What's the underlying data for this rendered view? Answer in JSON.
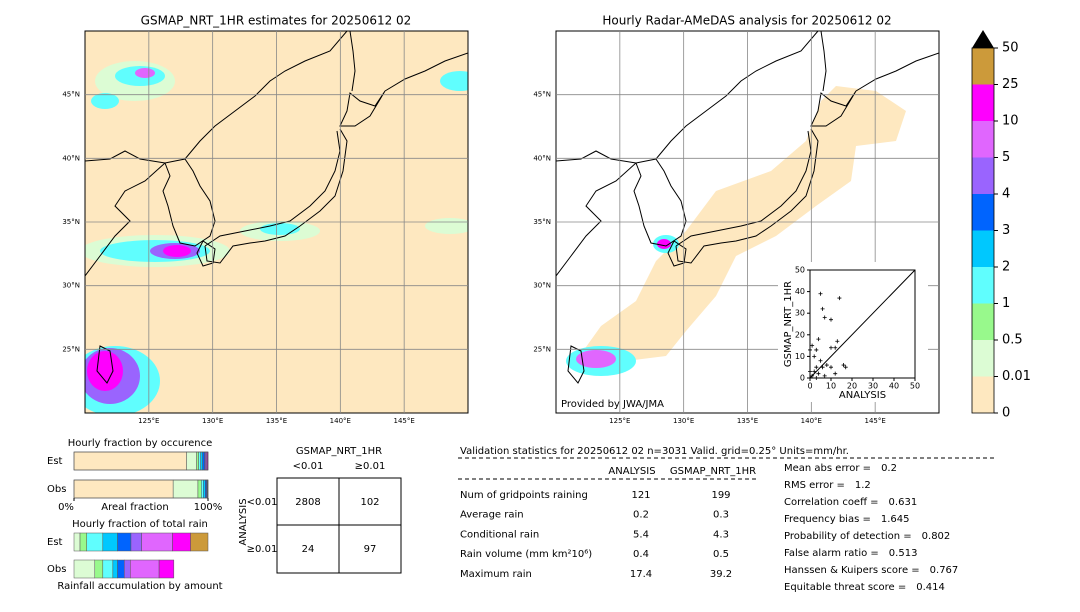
{
  "maps": [
    {
      "title": "GSMAP_NRT_1HR estimates for 20250612 02"
    },
    {
      "title": "Hourly Radar-AMeDAS analysis for 20250612 02",
      "credit": "Provided by JWA/JMA"
    }
  ],
  "map_axes": {
    "xlim": [
      120,
      150
    ],
    "ylim": [
      20,
      50
    ],
    "xticks": [
      {
        "value": 125,
        "label": "125°E"
      },
      {
        "value": 130,
        "label": "130°E"
      },
      {
        "value": 135,
        "label": "135°E"
      },
      {
        "value": 140,
        "label": "140°E"
      },
      {
        "value": 145,
        "label": "145°E"
      }
    ],
    "yticks": [
      {
        "value": 25,
        "label": "25°N"
      },
      {
        "value": 30,
        "label": "30°N"
      },
      {
        "value": 35,
        "label": "35°N"
      },
      {
        "value": 40,
        "label": "40°N"
      },
      {
        "value": 45,
        "label": "45°N"
      }
    ]
  },
  "colorbar": {
    "ticks": [
      0,
      0.01,
      0.5,
      1,
      2,
      3,
      4,
      5,
      10,
      25,
      50
    ],
    "colors": [
      "#fee8c0",
      "#dcfcd4",
      "#98f98c",
      "#60fefe",
      "#00c8fe",
      "#0064fe",
      "#9a64fe",
      "#e066fe",
      "#fe00fe",
      "#cc9a3a"
    ],
    "extend_color": "#000000"
  },
  "chart_data": [
    {
      "type": "scatter",
      "x_label": "ANALYSIS",
      "y_label": "GSMAP_NRT_1HR",
      "xlim": [
        0,
        50
      ],
      "ylim": [
        0,
        50
      ],
      "xticks": [
        0,
        10,
        20,
        30,
        40,
        50
      ],
      "yticks": [
        0,
        10,
        20,
        30,
        40,
        50
      ],
      "color": "#000000",
      "x": [
        5,
        6,
        7,
        10,
        14,
        13,
        10,
        12,
        4,
        3,
        1,
        2,
        0,
        5,
        8,
        17,
        16,
        10,
        6,
        3,
        2,
        4,
        1,
        0,
        3,
        7,
        12
      ],
      "y": [
        39,
        32,
        28,
        27,
        37,
        17,
        14,
        14,
        18,
        13,
        15,
        10,
        13,
        8,
        6,
        5,
        6,
        5,
        5,
        5,
        3,
        2,
        1,
        3,
        0,
        1,
        2
      ]
    },
    {
      "type": "stacked-bar",
      "title": "Hourly fraction by occurence",
      "x_label": "Areal fraction",
      "categories": [
        "Est",
        "Obs"
      ],
      "xlim": [
        0,
        100
      ],
      "xticks": [
        {
          "value": 0,
          "label": "0%"
        },
        {
          "value": 100,
          "label": "100%"
        }
      ],
      "series": [
        {
          "color": "#fee8c0",
          "values": [
            84,
            74
          ]
        },
        {
          "color": "#dcfcd4",
          "values": [
            7.5,
            18.5
          ]
        },
        {
          "color": "#98f98c",
          "values": [
            1.5,
            2.5
          ]
        },
        {
          "color": "#60fefe",
          "values": [
            1.5,
            1.5
          ]
        },
        {
          "color": "#00c8fe",
          "values": [
            1.5,
            1.5
          ]
        },
        {
          "color": "#0064fe",
          "values": [
            1.5,
            1
          ]
        },
        {
          "color": "#9a64fe",
          "values": [
            0.8,
            0.5
          ]
        },
        {
          "color": "#e066fe",
          "values": [
            0.7,
            0.3
          ]
        },
        {
          "color": "#fe00fe",
          "values": [
            0.7,
            0.2
          ]
        },
        {
          "color": "#cc9a3a",
          "values": [
            0.3,
            0
          ]
        }
      ]
    },
    {
      "type": "stacked-bar",
      "title": "Hourly fraction of total rain",
      "x_label": "Rainfall accumulation by amount",
      "categories": [
        "Est",
        "Obs"
      ],
      "xlim": [
        0,
        100
      ],
      "series": [
        {
          "color": "#dcfcd4",
          "values": [
            4.5,
            15.5
          ]
        },
        {
          "color": "#98f98c",
          "values": [
            5,
            6
          ]
        },
        {
          "color": "#60fefe",
          "values": [
            12,
            7.5
          ]
        },
        {
          "color": "#00c8fe",
          "values": [
            11,
            3.5
          ]
        },
        {
          "color": "#0064fe",
          "values": [
            10,
            5
          ]
        },
        {
          "color": "#9a64fe",
          "values": [
            8,
            4.5
          ]
        },
        {
          "color": "#e066fe",
          "values": [
            23,
            21.5
          ]
        },
        {
          "color": "#fe00fe",
          "values": [
            13.5,
            11
          ]
        },
        {
          "color": "#cc9a3a",
          "values": [
            13,
            0
          ]
        }
      ]
    }
  ],
  "contingency": {
    "title": "GSMAP_NRT_1HR",
    "col_labels": [
      "<0.01",
      "≥0.01"
    ],
    "row_axis": "ANALYSIS",
    "row_labels": [
      "<0.01",
      "≥0.01"
    ],
    "cells": [
      [
        2808,
        102
      ],
      [
        24,
        97
      ]
    ]
  },
  "stats": {
    "header": "Validation statistics for 20250612 02  n=3031 Valid. grid=0.25° Units=mm/hr.",
    "columns": [
      "ANALYSIS",
      "GSMAP_NRT_1HR"
    ],
    "rows": [
      {
        "label": "Num of gridpoints raining",
        "values": [
          121,
          199
        ]
      },
      {
        "label": "Average rain",
        "values": [
          0.2,
          0.3
        ]
      },
      {
        "label": "Conditional rain",
        "values": [
          5.4,
          4.3
        ]
      },
      {
        "label": "Rain volume (mm km²10⁶)",
        "values": [
          0.4,
          0.5
        ]
      },
      {
        "label": "Maximum rain",
        "values": [
          17.4,
          39.2
        ]
      }
    ],
    "scores": [
      {
        "label": "Mean abs error =",
        "value": 0.2
      },
      {
        "label": "RMS error =",
        "value": 1.2
      },
      {
        "label": "Correlation coeff =",
        "value": 0.631
      },
      {
        "label": "Frequency bias =",
        "value": 1.645
      },
      {
        "label": "Probability of detection =",
        "value": 0.802
      },
      {
        "label": "False alarm ratio =",
        "value": 0.513
      },
      {
        "label": "Hanssen & Kuipers score =",
        "value": 0.767
      },
      {
        "label": "Equitable threat score =",
        "value": 0.414
      }
    ]
  }
}
